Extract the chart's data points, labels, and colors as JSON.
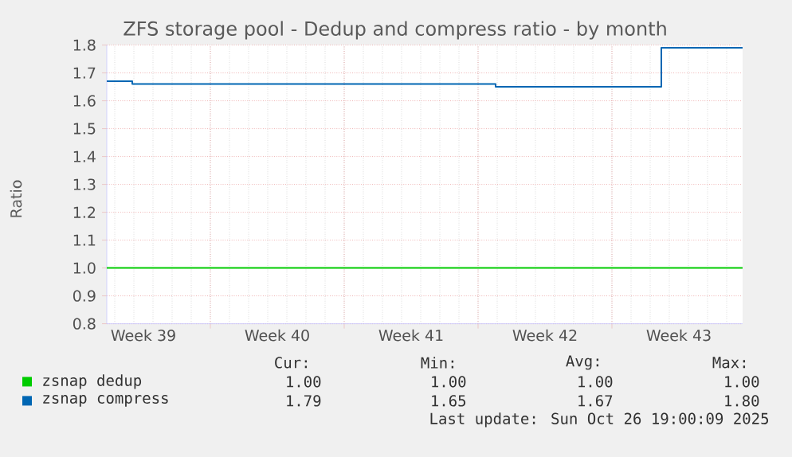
{
  "chart_data": {
    "type": "line",
    "title": "ZFS storage pool - Dedup and compress ratio - by month",
    "ylabel": "Ratio",
    "xlim": [
      "2025-09-23T14:00",
      "2025-10-26T20:00"
    ],
    "xticks": [
      {
        "value": "2025-09-29",
        "label": null
      },
      {
        "value": "2025-10-06",
        "label": null
      },
      {
        "value": "2025-10-13",
        "label": null
      },
      {
        "value": "2025-10-20",
        "label": null
      },
      {
        "value": "2025-09-25T12:00",
        "label": "Week 39"
      },
      {
        "value": "2025-10-02T12:00",
        "label": "Week 40"
      },
      {
        "value": "2025-10-09T12:00",
        "label": "Week 41"
      },
      {
        "value": "2025-10-16T12:00",
        "label": "Week 42"
      },
      {
        "value": "2025-10-23T12:00",
        "label": "Week 43"
      }
    ],
    "ylim": [
      0.8,
      1.8
    ],
    "yticks": [
      0.8,
      0.9,
      {
        "value": 1.0,
        "label": "1.0"
      },
      1.1,
      1.2,
      1.3,
      1.4,
      1.5,
      1.6,
      1.7,
      1.8
    ],
    "grid": true,
    "legend": "bottom",
    "series": [
      {
        "name": "zsnap dedup",
        "color": "#00cc00",
        "x": [
          "2025-09-23T14:00",
          "2025-10-26T20:00"
        ],
        "values": [
          1.0,
          1.0
        ]
      },
      {
        "name": "zsnap compress",
        "color": "#0066b3",
        "type": "step",
        "x": [
          "2025-09-23T14:00",
          "2025-09-24T22:00",
          "2025-10-13T22:00",
          "2025-10-22T14:00",
          "2025-10-26T20:00"
        ],
        "values": [
          1.67,
          1.66,
          1.65,
          1.79,
          1.79
        ]
      }
    ],
    "annotations": [
      "Cur:",
      "Min:",
      "Avg:",
      "Max:",
      "1.00",
      "1.00",
      "1.00",
      "1.00",
      "1.79",
      "1.65",
      "1.67",
      "1.80",
      "Last update: Sun Oct 26 19:00:09 2025"
    ]
  }
}
